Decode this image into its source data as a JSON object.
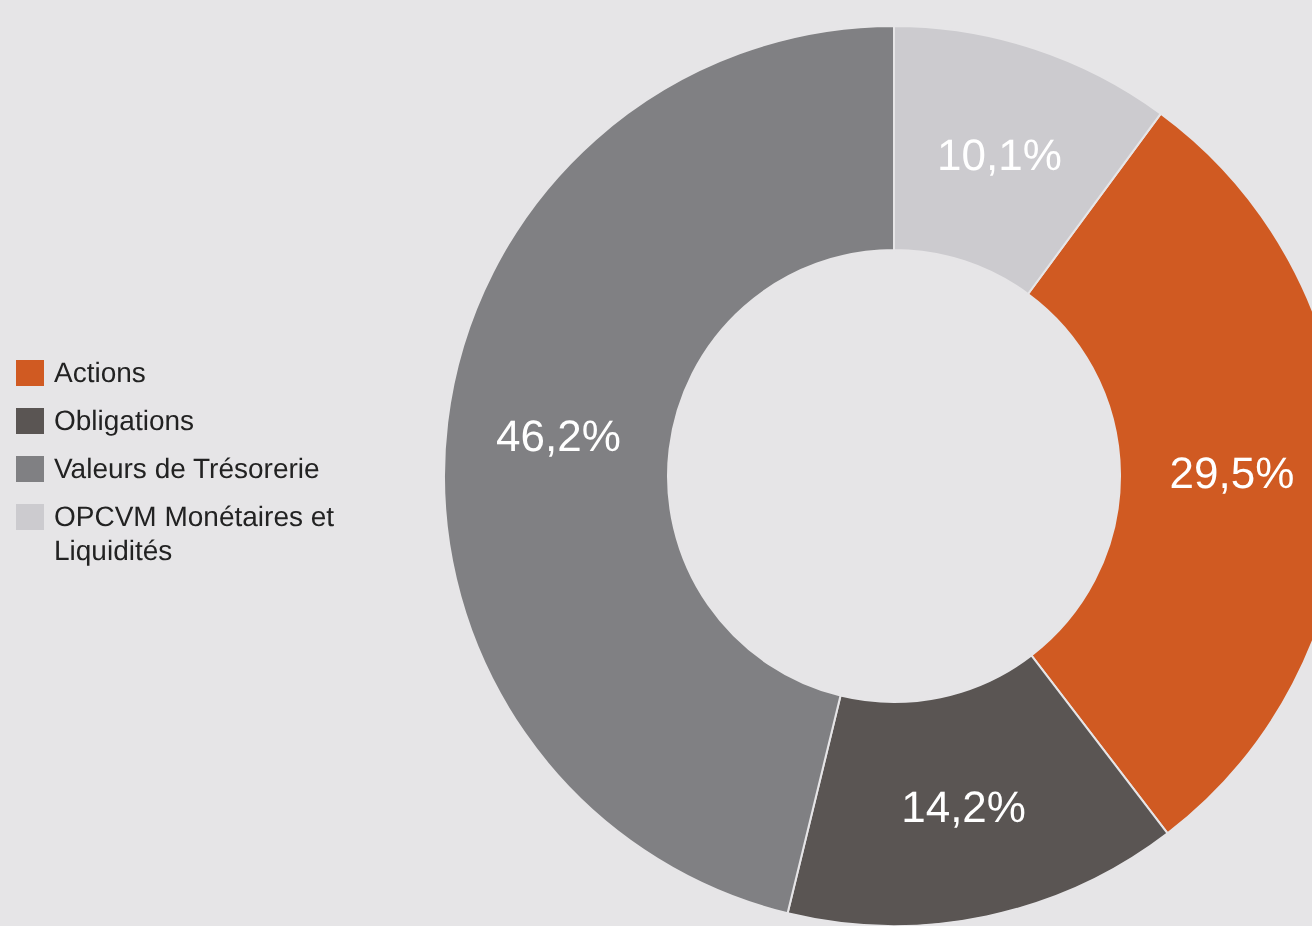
{
  "chart_data": {
    "type": "donut",
    "categories": [
      "Actions",
      "Obligations",
      "Valeurs de Trésorerie",
      "OPCVM Monétaires et Liquidités"
    ],
    "values": [
      29.5,
      14.2,
      46.2,
      10.1
    ],
    "colors": [
      "#d05a22",
      "#5a5553",
      "#808083",
      "#cccbcf"
    ],
    "value_labels": [
      "29,5%",
      "14,2%",
      "46,2%",
      "10,1%"
    ],
    "legend": "left"
  }
}
